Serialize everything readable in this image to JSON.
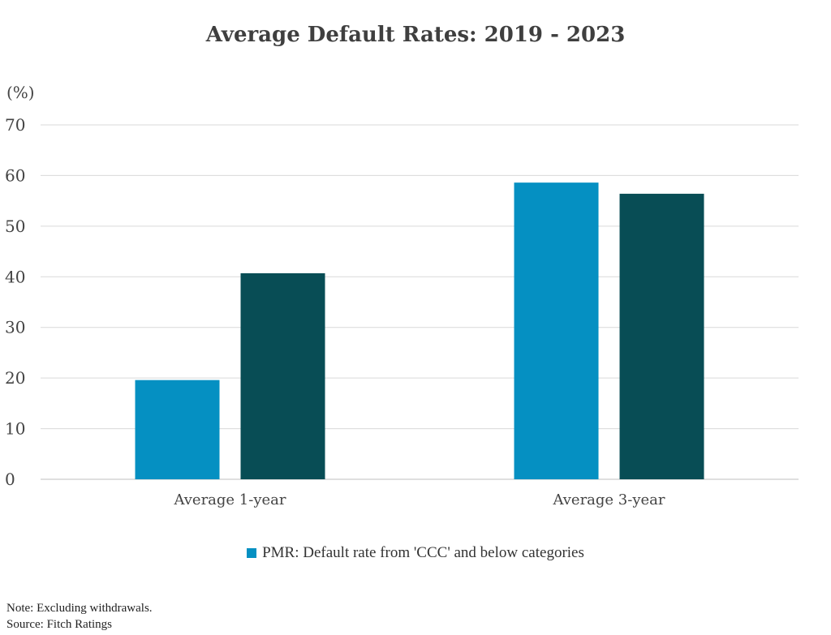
{
  "chart_data": {
    "type": "bar",
    "title": "Average Default Rates: 2019 - 2023",
    "ylabel": "(%)",
    "categories": [
      "Average 1-year",
      "Average 3-year"
    ],
    "series": [
      {
        "name": "PMR: Default rate from 'CCC' and below categories",
        "values": [
          19.6,
          58.6
        ],
        "color": "#0590c2"
      },
      {
        "values": [
          40.7,
          56.4
        ],
        "color": "#084d55"
      }
    ],
    "ylim": [
      0,
      70
    ],
    "yticks": [
      0,
      10,
      20,
      30,
      40,
      50,
      60,
      70
    ],
    "grid": true,
    "legend_position": "bottom"
  },
  "notes": {
    "line1": "Note: Excluding withdrawals.",
    "line2": "Source: Fitch Ratings"
  }
}
